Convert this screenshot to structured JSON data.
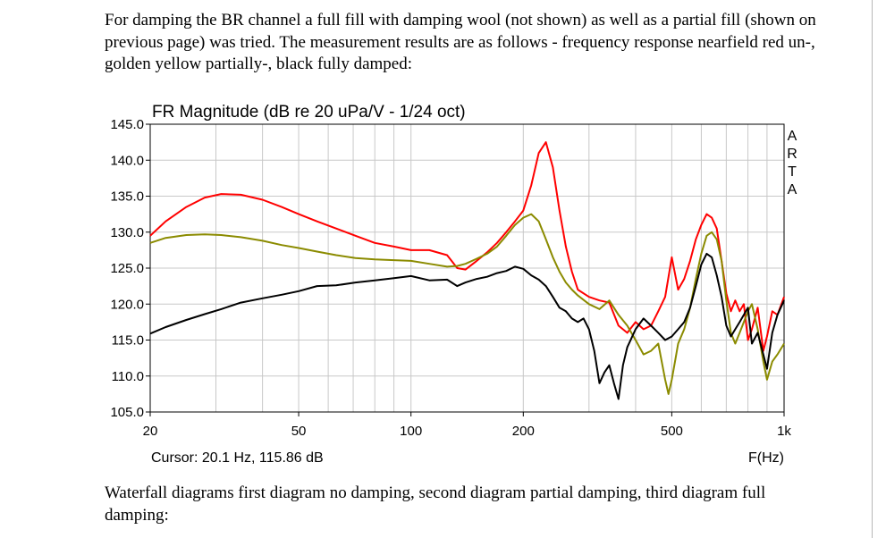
{
  "document": {
    "intro_text": "For damping the BR channel a full fill with damping wool (not shown) as well as a partial fill (shown on previous page) was tried. The measurement results are as follows - frequency response nearfield red un-, golden yellow partially-, black fully damped:",
    "outro_text": "Waterfall diagrams first diagram no damping, second diagram partial damping, third diagram full damping:"
  },
  "chart_data": {
    "type": "line",
    "title": "FR Magnitude (dB re 20 uPa/V - 1/24 oct)",
    "brand": "ARTA",
    "xlabel": "F(Hz)",
    "ylabel": "",
    "cursor": "Cursor: 20.1 Hz, 115.86 dB",
    "x_scale": "log",
    "xlim": [
      20,
      1000
    ],
    "ylim": [
      105,
      145
    ],
    "grid": true,
    "xticks": [
      20,
      50,
      100,
      200,
      500,
      1000
    ],
    "xtick_labels": [
      "20",
      "50",
      "100",
      "200",
      "500",
      "1k"
    ],
    "yticks": [
      145,
      140,
      135,
      130,
      125,
      120,
      115,
      110,
      105
    ],
    "ytick_labels": [
      "145.0",
      "140.0",
      "135.0",
      "130.0",
      "125.0",
      "120.0",
      "115.0",
      "110.0",
      "105.0"
    ],
    "series": [
      {
        "color": "#ff0000",
        "x": [
          20,
          22,
          25,
          28,
          31,
          35,
          40,
          45,
          50,
          56,
          63,
          71,
          80,
          90,
          100,
          112,
          125,
          133,
          140,
          150,
          160,
          170,
          180,
          190,
          200,
          210,
          220,
          230,
          240,
          250,
          260,
          270,
          280,
          300,
          320,
          340,
          360,
          380,
          400,
          420,
          440,
          460,
          480,
          500,
          520,
          540,
          560,
          580,
          600,
          620,
          640,
          660,
          680,
          700,
          720,
          740,
          760,
          780,
          800,
          820,
          850,
          880,
          900,
          930,
          960,
          1000
        ],
        "y": [
          129.5,
          131.5,
          133.5,
          134.8,
          135.3,
          135.2,
          134.5,
          133.5,
          132.5,
          131.5,
          130.5,
          129.5,
          128.5,
          128.0,
          127.5,
          127.5,
          126.8,
          125.0,
          124.8,
          126.0,
          127.2,
          128.5,
          130.0,
          131.5,
          133.0,
          136.5,
          141.0,
          142.5,
          139.0,
          133.0,
          128.0,
          124.5,
          122.0,
          121.0,
          120.5,
          120.2,
          117.0,
          116.0,
          117.5,
          116.5,
          117.0,
          119.0,
          121.0,
          126.5,
          122.0,
          123.5,
          126.0,
          129.0,
          131.0,
          132.5,
          132.0,
          130.5,
          126.0,
          121.5,
          119.0,
          120.5,
          119.0,
          120.0,
          115.0,
          116.5,
          119.5,
          113.5,
          115.5,
          119.0,
          118.5,
          121.0
        ]
      },
      {
        "color": "#8b8b00",
        "x": [
          20,
          22,
          25,
          28,
          31,
          35,
          40,
          45,
          50,
          56,
          63,
          71,
          80,
          90,
          100,
          112,
          125,
          133,
          140,
          150,
          160,
          170,
          180,
          190,
          200,
          210,
          220,
          230,
          240,
          250,
          260,
          270,
          280,
          300,
          320,
          340,
          360,
          380,
          400,
          420,
          440,
          460,
          480,
          490,
          500,
          510,
          520,
          540,
          560,
          580,
          600,
          620,
          640,
          660,
          680,
          700,
          720,
          740,
          760,
          780,
          800,
          820,
          850,
          880,
          900,
          930,
          960,
          1000
        ],
        "y": [
          128.5,
          129.2,
          129.6,
          129.7,
          129.6,
          129.3,
          128.8,
          128.2,
          127.8,
          127.3,
          126.8,
          126.4,
          126.2,
          126.1,
          126.0,
          125.6,
          125.2,
          125.3,
          125.6,
          126.3,
          127.0,
          128.0,
          129.5,
          131.0,
          132.0,
          132.5,
          131.5,
          129.0,
          126.5,
          124.5,
          123.0,
          122.0,
          121.2,
          120.0,
          119.3,
          120.5,
          118.5,
          117.0,
          115.0,
          113.0,
          113.5,
          114.5,
          109.5,
          107.5,
          109.5,
          112.0,
          114.5,
          116.5,
          119.5,
          123.5,
          127.0,
          129.5,
          130.0,
          129.0,
          126.0,
          120.5,
          116.0,
          114.5,
          116.0,
          117.5,
          119.0,
          120.0,
          116.5,
          112.0,
          109.5,
          112.0,
          113.0,
          114.5
        ]
      },
      {
        "color": "#000000",
        "x": [
          20,
          22,
          25,
          28,
          31,
          35,
          40,
          45,
          50,
          56,
          63,
          71,
          80,
          90,
          100,
          112,
          125,
          133,
          140,
          150,
          160,
          170,
          180,
          190,
          200,
          210,
          220,
          230,
          240,
          250,
          260,
          270,
          280,
          290,
          300,
          310,
          320,
          330,
          340,
          350,
          360,
          370,
          380,
          400,
          420,
          440,
          460,
          480,
          500,
          520,
          540,
          560,
          580,
          600,
          620,
          640,
          660,
          680,
          700,
          720,
          740,
          760,
          780,
          800,
          820,
          850,
          880,
          900,
          930,
          960,
          1000
        ],
        "y": [
          115.9,
          116.8,
          117.8,
          118.6,
          119.3,
          120.2,
          120.8,
          121.3,
          121.8,
          122.5,
          122.6,
          123.0,
          123.3,
          123.6,
          123.9,
          123.3,
          123.4,
          122.5,
          123.0,
          123.5,
          123.8,
          124.3,
          124.6,
          125.2,
          124.9,
          124.0,
          123.4,
          122.5,
          121.0,
          119.5,
          119.0,
          118.0,
          117.5,
          118.0,
          116.5,
          113.5,
          109.0,
          110.5,
          111.5,
          109.0,
          106.8,
          111.5,
          114.0,
          116.5,
          118.0,
          117.0,
          116.0,
          115.0,
          115.5,
          116.5,
          117.5,
          119.5,
          122.5,
          125.5,
          127.0,
          126.5,
          124.0,
          121.0,
          117.0,
          115.5,
          116.5,
          117.5,
          118.5,
          119.5,
          114.5,
          116.0,
          113.0,
          111.0,
          116.0,
          118.5,
          120.5
        ]
      }
    ]
  }
}
